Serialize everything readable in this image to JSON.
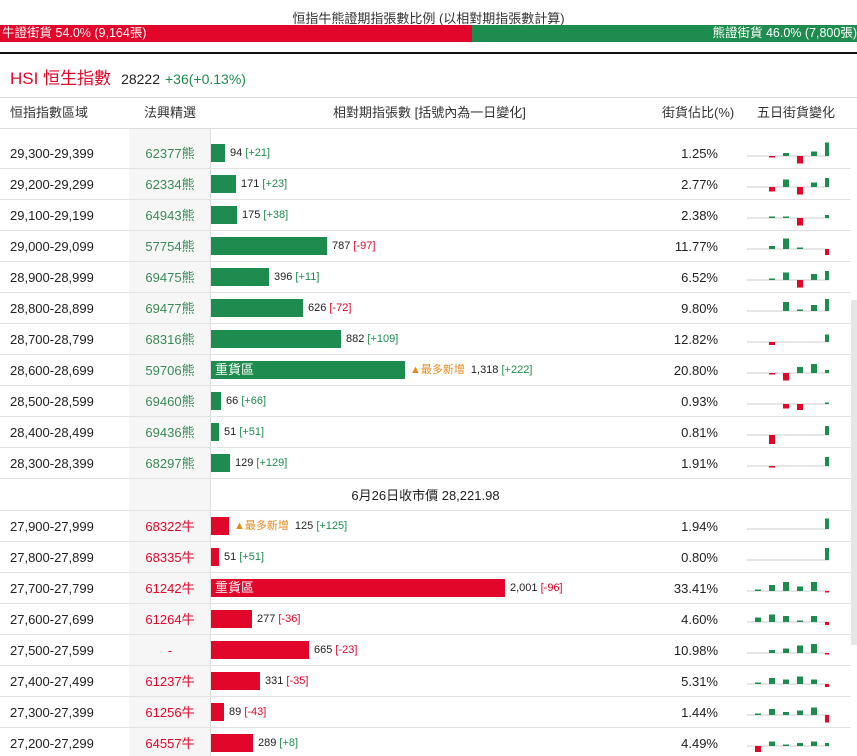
{
  "title": "恒指牛熊證期指張數比例 (以相對期指張數計算)",
  "ratio": {
    "bull_label": "牛證街貨 54.0% (9,164張)",
    "bear_label": "熊證街貨 46.0% (7,800張)",
    "bull_pct": 54.0,
    "bear_pct": 46.0
  },
  "index": {
    "name": "HSI 恒生指數",
    "value": "28222",
    "change": "+36(+0.13%)"
  },
  "columns": {
    "range": "恒指指數區域",
    "issuer": "法興精選",
    "distribution": "相對期指張數 [括號內為一日變化]",
    "pct": "街貨佔比(%)",
    "five_day": "五日街貨變化"
  },
  "close_label": "6月26日收市價 28,221.98",
  "colors": {
    "bull": "#e2062a",
    "bear": "#1e8c4e",
    "newest": "#e88a1a"
  },
  "bear_rows": [
    {
      "range": "29,300-29,399",
      "issuer": "62377熊",
      "value": 94,
      "value_text": "94",
      "delta": "[+21]",
      "pct": "1.25%",
      "spark": [
        0,
        -1,
        2,
        -5,
        3,
        9
      ]
    },
    {
      "range": "29,200-29,299",
      "issuer": "62334熊",
      "value": 171,
      "value_text": "171",
      "delta": "[+23]",
      "pct": "2.77%",
      "spark": [
        0,
        -3,
        5,
        -5,
        3,
        6
      ]
    },
    {
      "range": "29,100-29,199",
      "issuer": "64943熊",
      "value": 175,
      "value_text": "175",
      "delta": "[+38]",
      "pct": "2.38%",
      "spark": [
        0,
        1,
        1,
        -5,
        0,
        2
      ]
    },
    {
      "range": "29,000-29,099",
      "issuer": "57754熊",
      "value": 787,
      "value_text": "787",
      "delta": "[-97]",
      "pct": "11.77%",
      "spark": [
        0,
        2,
        7,
        1,
        0,
        -4
      ]
    },
    {
      "range": "28,900-28,999",
      "issuer": "69475熊",
      "value": 396,
      "value_text": "396",
      "delta": "[+11]",
      "pct": "6.52%",
      "spark": [
        0,
        1,
        5,
        -5,
        4,
        6
      ]
    },
    {
      "range": "28,800-28,899",
      "issuer": "69477熊",
      "value": 626,
      "value_text": "626",
      "delta": "[-72]",
      "pct": "9.80%",
      "spark": [
        0,
        0,
        6,
        1,
        4,
        8
      ]
    },
    {
      "range": "28,700-28,799",
      "issuer": "68316熊",
      "value": 882,
      "value_text": "882",
      "delta": "[+109]",
      "pct": "12.82%",
      "spark": [
        0,
        -2,
        0,
        0,
        0,
        5
      ]
    },
    {
      "range": "28,600-28,699",
      "issuer": "59706熊",
      "value": 1318,
      "value_text": "1,318",
      "delta": "[+222]",
      "pct": "20.80%",
      "spark": [
        0,
        -1,
        -5,
        4,
        6,
        2
      ],
      "tag": "重貨區",
      "newest": "▲最多新增"
    },
    {
      "range": "28,500-28,599",
      "issuer": "69460熊",
      "value": 66,
      "value_text": "66",
      "delta": "[+66]",
      "pct": "0.93%",
      "spark": [
        0,
        0,
        -3,
        -4,
        0,
        1
      ]
    },
    {
      "range": "28,400-28,499",
      "issuer": "69436熊",
      "value": 51,
      "value_text": "51",
      "delta": "[+51]",
      "pct": "0.81%",
      "spark": [
        0,
        -6,
        0,
        0,
        0,
        6
      ]
    },
    {
      "range": "28,300-28,399",
      "issuer": "68297熊",
      "value": 129,
      "value_text": "129",
      "delta": "[+129]",
      "pct": "1.91%",
      "spark": [
        0,
        -1,
        0,
        0,
        0,
        6
      ]
    }
  ],
  "bull_rows": [
    {
      "range": "27,900-27,999",
      "issuer": "68322牛",
      "value": 125,
      "value_text": "125",
      "delta": "[+125]",
      "pct": "1.94%",
      "spark": [
        0,
        0,
        0,
        0,
        0,
        7
      ],
      "newest": "▲最多新增"
    },
    {
      "range": "27,800-27,899",
      "issuer": "68335牛",
      "value": 51,
      "value_text": "51",
      "delta": "[+51]",
      "pct": "0.80%",
      "spark": [
        0,
        0,
        0,
        0,
        0,
        8
      ]
    },
    {
      "range": "27,700-27,799",
      "issuer": "61242牛",
      "value": 2001,
      "value_text": "2,001",
      "delta": "[-96]",
      "pct": "33.41%",
      "spark": [
        1,
        4,
        6,
        3,
        6,
        -1
      ],
      "tag": "重貨區"
    },
    {
      "range": "27,600-27,699",
      "issuer": "61264牛",
      "value": 277,
      "value_text": "277",
      "delta": "[-36]",
      "pct": "4.60%",
      "spark": [
        3,
        5,
        4,
        1,
        4,
        -2
      ]
    },
    {
      "range": "27,500-27,599",
      "issuer": "-",
      "value": 665,
      "value_text": "665",
      "delta": "[-23]",
      "pct": "10.98%",
      "spark": [
        0,
        2,
        3,
        5,
        6,
        -1
      ]
    },
    {
      "range": "27,400-27,499",
      "issuer": "61237牛",
      "value": 331,
      "value_text": "331",
      "delta": "[-35]",
      "pct": "5.31%",
      "spark": [
        1,
        4,
        3,
        5,
        3,
        -2
      ]
    },
    {
      "range": "27,300-27,399",
      "issuer": "61256牛",
      "value": 89,
      "value_text": "89",
      "delta": "[-43]",
      "pct": "1.44%",
      "spark": [
        1,
        4,
        2,
        3,
        5,
        -5
      ]
    },
    {
      "range": "27,200-27,299",
      "issuer": "64557牛",
      "value": 289,
      "value_text": "289",
      "delta": "[+8]",
      "pct": "4.49%",
      "spark": [
        -4,
        3,
        1,
        2,
        3,
        2
      ]
    }
  ]
}
